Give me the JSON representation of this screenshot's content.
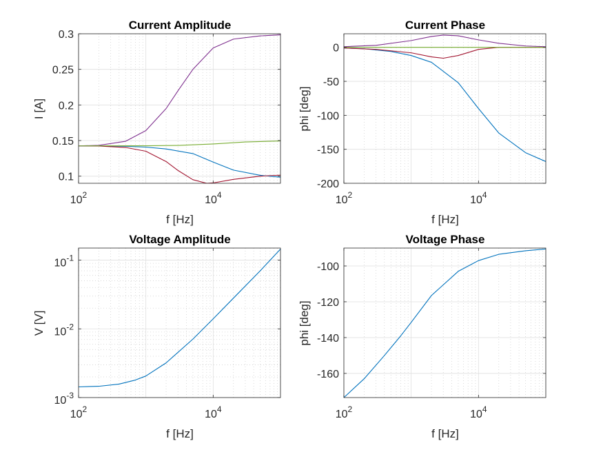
{
  "colors": {
    "background": "#ffffff",
    "grid": "#dfdfdf",
    "axis": "#262626",
    "blue": "#0072BD",
    "red": "#A2142F",
    "purple": "#7E2F8E",
    "green": "#77AC30"
  },
  "chart_data": [
    {
      "id": "current-amplitude",
      "type": "line",
      "title": "Current Amplitude",
      "xlabel": "f [Hz]",
      "ylabel": "I [A]",
      "xscale": "log",
      "yscale": "linear",
      "xlim": [
        100,
        100000
      ],
      "ylim": [
        0.09,
        0.3
      ],
      "grid": "major-and-minor",
      "xticks": [
        {
          "value": 100,
          "base": "10",
          "exp": "2"
        },
        {
          "value": 10000,
          "base": "10",
          "exp": "4"
        }
      ],
      "yticks": [
        {
          "value": 0.1,
          "label": "0.1"
        },
        {
          "value": 0.15,
          "label": "0.15"
        },
        {
          "value": 0.2,
          "label": "0.2"
        },
        {
          "value": 0.25,
          "label": "0.25"
        },
        {
          "value": 0.3,
          "label": "0.3"
        }
      ],
      "series": [
        {
          "color": "#0072BD",
          "x": [
            100,
            200,
            500,
            1000,
            2000,
            5000,
            10000,
            20000,
            50000,
            100000
          ],
          "y": [
            0.1425,
            0.1424,
            0.1419,
            0.1408,
            0.1382,
            0.1317,
            0.1198,
            0.1085,
            0.1012,
            0.0985
          ]
        },
        {
          "color": "#A2142F",
          "x": [
            100,
            200,
            500,
            1000,
            2000,
            3000,
            5000,
            8000,
            10000,
            20000,
            50000,
            100000
          ],
          "y": [
            0.1425,
            0.1423,
            0.1403,
            0.135,
            0.1205,
            0.108,
            0.095,
            0.09,
            0.0905,
            0.0955,
            0.1,
            0.1015
          ]
        },
        {
          "color": "#7E2F8E",
          "x": [
            100,
            200,
            500,
            1000,
            2000,
            3000,
            5000,
            10000,
            20000,
            50000,
            100000
          ],
          "y": [
            0.1425,
            0.1433,
            0.149,
            0.164,
            0.195,
            0.22,
            0.25,
            0.28,
            0.2925,
            0.297,
            0.2985
          ]
        },
        {
          "color": "#77AC30",
          "x": [
            100,
            1000,
            3000,
            10000,
            30000,
            100000
          ],
          "y": [
            0.1425,
            0.1427,
            0.1432,
            0.1452,
            0.148,
            0.1495
          ]
        }
      ]
    },
    {
      "id": "current-phase",
      "type": "line",
      "title": "Current Phase",
      "xlabel": "f [Hz]",
      "ylabel": "phi [deg]",
      "xscale": "log",
      "yscale": "linear",
      "xlim": [
        100,
        100000
      ],
      "ylim": [
        -200,
        20
      ],
      "grid": "major-and-minor",
      "xticks": [
        {
          "value": 100,
          "base": "10",
          "exp": "2"
        },
        {
          "value": 10000,
          "base": "10",
          "exp": "4"
        }
      ],
      "yticks": [
        {
          "value": -200,
          "label": "-200"
        },
        {
          "value": -150,
          "label": "-150"
        },
        {
          "value": -100,
          "label": "-100"
        },
        {
          "value": -50,
          "label": "-50"
        },
        {
          "value": 0,
          "label": "0"
        }
      ],
      "series": [
        {
          "color": "#0072BD",
          "x": [
            100,
            200,
            500,
            1000,
            2000,
            5000,
            10000,
            20000,
            50000,
            100000
          ],
          "y": [
            -1,
            -2,
            -6,
            -12,
            -22,
            -52,
            -90,
            -126,
            -155,
            -168
          ]
        },
        {
          "color": "#A2142F",
          "x": [
            100,
            300,
            1000,
            2000,
            3000,
            5000,
            10000,
            20000,
            100000
          ],
          "y": [
            -1,
            -3,
            -8,
            -14,
            -16,
            -12,
            -3,
            0,
            0
          ]
        },
        {
          "color": "#7E2F8E",
          "x": [
            100,
            300,
            1000,
            2000,
            3000,
            5000,
            10000,
            20000,
            50000,
            100000
          ],
          "y": [
            1,
            3,
            10,
            16,
            18,
            17,
            11,
            6,
            2,
            1
          ]
        },
        {
          "color": "#77AC30",
          "x": [
            100,
            1000,
            10000,
            100000
          ],
          "y": [
            0,
            0,
            0,
            0
          ]
        }
      ]
    },
    {
      "id": "voltage-amplitude",
      "type": "line",
      "title": "Voltage Amplitude",
      "xlabel": "f [Hz]",
      "ylabel": "V [V]",
      "xscale": "log",
      "yscale": "log",
      "xlim": [
        100,
        100000
      ],
      "ylim": [
        0.001,
        0.15
      ],
      "grid": "major-and-minor",
      "xticks": [
        {
          "value": 100,
          "base": "10",
          "exp": "2"
        },
        {
          "value": 10000,
          "base": "10",
          "exp": "4"
        }
      ],
      "yticks": [
        {
          "value": 0.001,
          "base": "10",
          "exp": "-3"
        },
        {
          "value": 0.01,
          "base": "10",
          "exp": "-2"
        },
        {
          "value": 0.1,
          "base": "10",
          "exp": "-1"
        }
      ],
      "series": [
        {
          "color": "#0072BD",
          "x": [
            100,
            200,
            400,
            700,
            1000,
            2000,
            5000,
            10000,
            20000,
            50000,
            100000
          ],
          "y": [
            0.00143,
            0.00146,
            0.00157,
            0.0018,
            0.00206,
            0.0032,
            0.0071,
            0.014,
            0.028,
            0.07,
            0.145
          ]
        }
      ]
    },
    {
      "id": "voltage-phase",
      "type": "line",
      "title": "Voltage Phase",
      "xlabel": "f [Hz]",
      "ylabel": "phi [deg]",
      "xscale": "log",
      "yscale": "linear",
      "xlim": [
        100,
        100000
      ],
      "ylim": [
        -173.5,
        -90
      ],
      "grid": "major-and-minor",
      "xticks": [
        {
          "value": 100,
          "base": "10",
          "exp": "2"
        },
        {
          "value": 10000,
          "base": "10",
          "exp": "4"
        }
      ],
      "yticks": [
        {
          "value": -160,
          "label": "-160"
        },
        {
          "value": -140,
          "label": "-140"
        },
        {
          "value": -120,
          "label": "-120"
        },
        {
          "value": -100,
          "label": "-100"
        }
      ],
      "series": [
        {
          "color": "#0072BD",
          "x": [
            100,
            200,
            400,
            700,
            1000,
            2000,
            5000,
            10000,
            20000,
            50000,
            100000
          ],
          "y": [
            -173.5,
            -163,
            -150,
            -139,
            -131.5,
            -116.5,
            -103,
            -97,
            -93.5,
            -91.5,
            -90.5
          ]
        }
      ]
    }
  ]
}
